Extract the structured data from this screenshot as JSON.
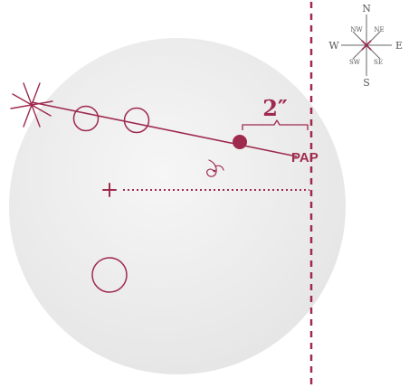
{
  "colors": {
    "accent": "#9e2a4e",
    "disk_fill": "#efefef",
    "compass": "#555555"
  },
  "labels": {
    "measurement": "2″",
    "pap": "PAP"
  },
  "compass": {
    "n": "N",
    "s": "S",
    "e": "E",
    "w": "W",
    "ne": "NE",
    "nw": "NW",
    "se": "SE",
    "sw": "SW"
  },
  "icons": {
    "star_burst": "asterisk-burst-icon",
    "spiral": "spiral-icon",
    "cross": "plus-icon"
  }
}
